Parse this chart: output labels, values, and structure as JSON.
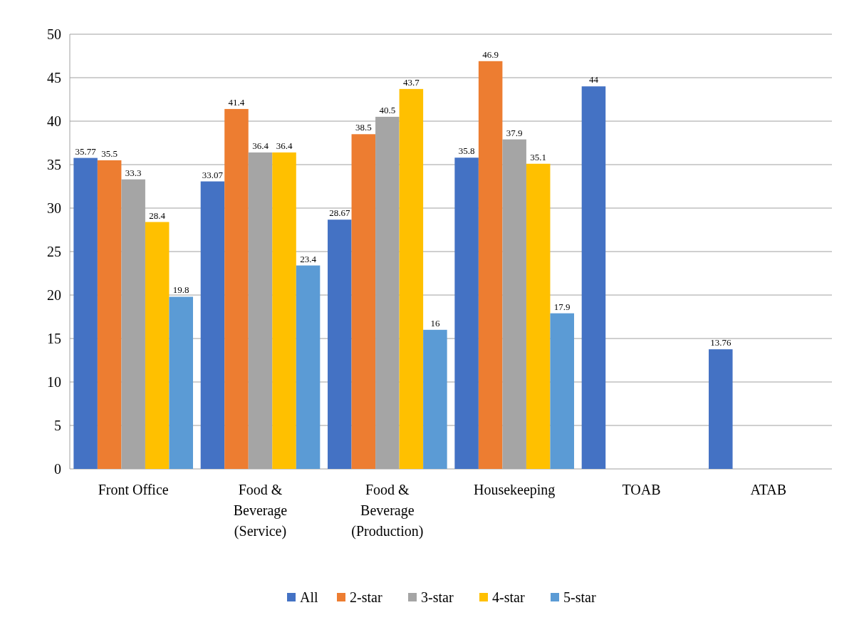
{
  "chart_data": {
    "type": "bar",
    "categories": [
      "Front Office",
      "Food & Beverage (Service)",
      "Food & Beverage (Production)",
      "Housekeeping",
      "TOAB",
      "ATAB"
    ],
    "series": [
      {
        "name": "All",
        "color": "#4472c4",
        "values": [
          35.77,
          33.07,
          28.67,
          35.8,
          44,
          13.76
        ]
      },
      {
        "name": "2-star",
        "color": "#ed7d31",
        "values": [
          35.5,
          41.4,
          38.5,
          46.9,
          null,
          null
        ]
      },
      {
        "name": "3-star",
        "color": "#a5a5a5",
        "values": [
          33.3,
          36.4,
          40.5,
          37.9,
          null,
          null
        ]
      },
      {
        "name": "4-star",
        "color": "#ffc000",
        "values": [
          28.4,
          36.4,
          43.7,
          35.1,
          null,
          null
        ]
      },
      {
        "name": "5-star",
        "color": "#5b9bd5",
        "values": [
          19.8,
          23.4,
          16,
          17.9,
          null,
          null
        ]
      }
    ],
    "ylim": [
      0,
      50
    ],
    "yticks": [
      0,
      5,
      10,
      15,
      20,
      25,
      30,
      35,
      40,
      45,
      50
    ],
    "grid": "y",
    "legend": "bottom",
    "data_labels": true
  }
}
